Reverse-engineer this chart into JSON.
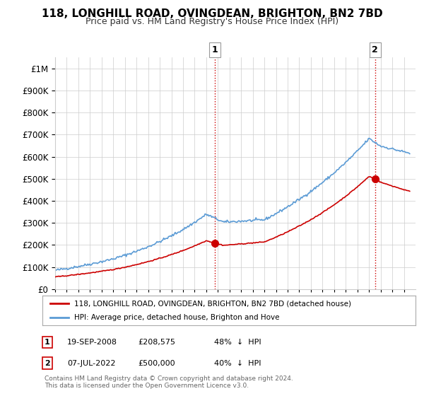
{
  "title": "118, LONGHILL ROAD, OVINGDEAN, BRIGHTON, BN2 7BD",
  "subtitle": "Price paid vs. HM Land Registry's House Price Index (HPI)",
  "hpi_label": "HPI: Average price, detached house, Brighton and Hove",
  "property_label": "118, LONGHILL ROAD, OVINGDEAN, BRIGHTON, BN2 7BD (detached house)",
  "hpi_color": "#5b9bd5",
  "property_color": "#cc0000",
  "sale1_date_num": 2008.72,
  "sale1_price": 208575,
  "sale2_date_num": 2022.52,
  "sale2_price": 500000,
  "footer": "Contains HM Land Registry data © Crown copyright and database right 2024.\nThis data is licensed under the Open Government Licence v3.0.",
  "xmin": 1995,
  "xmax": 2026,
  "ymin": 0,
  "ymax": 1050000,
  "background_color": "#ffffff",
  "grid_color": "#cccccc"
}
